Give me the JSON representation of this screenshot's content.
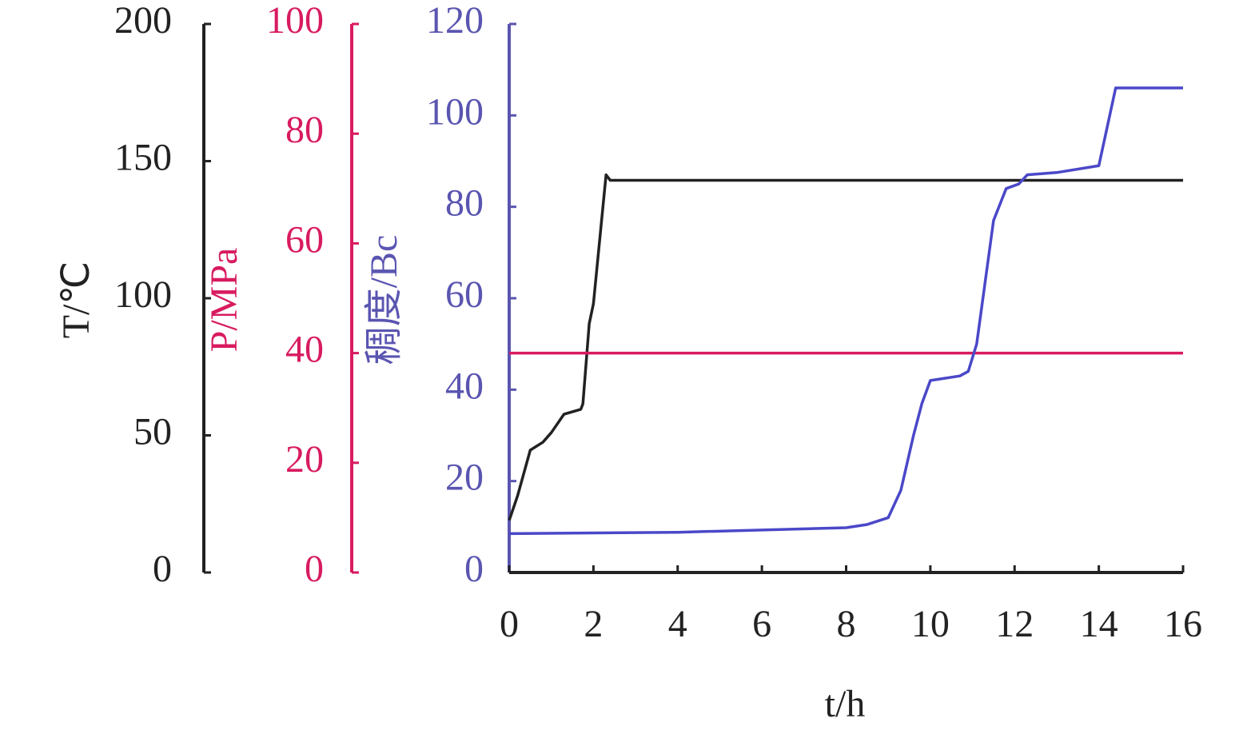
{
  "chart_data": {
    "type": "line",
    "x_label": "t/h",
    "xlim": [
      0,
      16
    ],
    "xticks": [
      0,
      2,
      4,
      6,
      8,
      10,
      12,
      14,
      16
    ],
    "y_axes": [
      {
        "label": "T/℃",
        "color": "#222222",
        "ylim": [
          0,
          200
        ],
        "yticks": [
          0,
          50,
          100,
          150,
          200
        ]
      },
      {
        "label": "P/MPa",
        "color": "#d81b60",
        "ylim": [
          0,
          100
        ],
        "yticks": [
          0,
          20,
          40,
          60,
          80,
          100
        ]
      },
      {
        "label": "稠度/Bc",
        "color": "#5a55b0",
        "ylim": [
          0,
          120
        ],
        "yticks": [
          0,
          20,
          40,
          60,
          80,
          100,
          120
        ]
      }
    ],
    "series": [
      {
        "axis": 0,
        "color": "#222222",
        "x": [
          0,
          0.2,
          0.5,
          0.8,
          1.0,
          1.3,
          1.7,
          1.75,
          1.9,
          2.0,
          2.3,
          2.4,
          16
        ],
        "values": [
          19,
          28,
          44.6,
          47.5,
          51,
          57.7,
          59.5,
          61.5,
          90.7,
          98,
          145,
          143,
          143
        ]
      },
      {
        "axis": 1,
        "color": "#d81b60",
        "x": [
          0,
          16
        ],
        "values": [
          40,
          40
        ]
      },
      {
        "axis": 2,
        "color": "#4a48c8",
        "x": [
          0,
          4,
          8,
          8.5,
          9,
          9.3,
          9.6,
          9.8,
          10,
          10.7,
          10.9,
          11.1,
          11.5,
          11.8,
          12.1,
          12.3,
          13,
          14,
          14.4,
          16
        ],
        "values": [
          8.5,
          8.8,
          9.8,
          10.5,
          12,
          18,
          30,
          37,
          42,
          43,
          44,
          50,
          77,
          84,
          85,
          87,
          87.5,
          89,
          106,
          106
        ]
      }
    ]
  }
}
